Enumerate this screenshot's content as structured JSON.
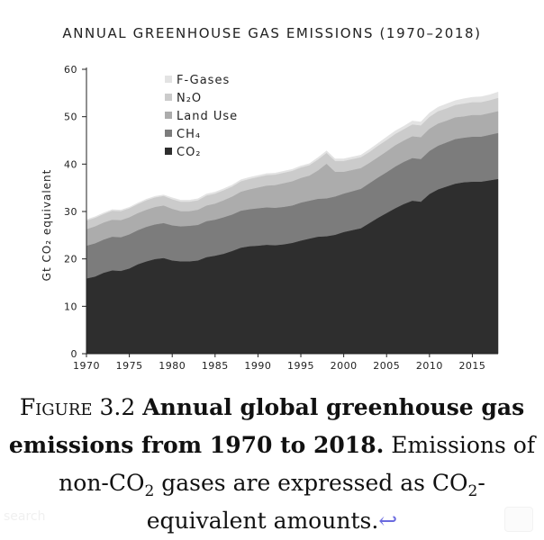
{
  "chart_data": {
    "type": "area",
    "title": "ANNUAL GREENHOUSE GAS EMISSIONS (1970–2018)",
    "ylabel": "Gt CO₂ equivalent",
    "xlabel": "",
    "xlim": [
      1970,
      2018
    ],
    "ylim": [
      0,
      60
    ],
    "yticks": [
      0,
      10,
      20,
      30,
      40,
      50,
      60
    ],
    "xticks": [
      1970,
      1975,
      1980,
      1985,
      1990,
      1995,
      2000,
      2005,
      2010,
      2015
    ],
    "grid": false,
    "legend_position": "top-left",
    "stacked": true,
    "x": [
      1970,
      1971,
      1972,
      1973,
      1974,
      1975,
      1976,
      1977,
      1978,
      1979,
      1980,
      1981,
      1982,
      1983,
      1984,
      1985,
      1986,
      1987,
      1988,
      1989,
      1990,
      1991,
      1992,
      1993,
      1994,
      1995,
      1996,
      1997,
      1998,
      1999,
      2000,
      2001,
      2002,
      2003,
      2004,
      2005,
      2006,
      2007,
      2008,
      2009,
      2010,
      2011,
      2012,
      2013,
      2014,
      2015,
      2016,
      2017,
      2018
    ],
    "series": [
      {
        "name": "CO₂",
        "color": "#2e2e2e",
        "values": [
          15.8,
          16.2,
          17.0,
          17.5,
          17.4,
          17.9,
          18.8,
          19.4,
          19.9,
          20.1,
          19.6,
          19.4,
          19.4,
          19.6,
          20.3,
          20.6,
          21.0,
          21.6,
          22.3,
          22.6,
          22.7,
          22.9,
          22.8,
          23.0,
          23.3,
          23.8,
          24.2,
          24.6,
          24.7,
          25.0,
          25.6,
          26.0,
          26.4,
          27.5,
          28.6,
          29.6,
          30.6,
          31.5,
          32.2,
          32.0,
          33.6,
          34.6,
          35.2,
          35.8,
          36.1,
          36.2,
          36.2,
          36.5,
          36.8
        ]
      },
      {
        "name": "CH₄",
        "color": "#7c7c7c",
        "values": [
          6.9,
          7.0,
          7.0,
          7.1,
          7.1,
          7.2,
          7.2,
          7.3,
          7.3,
          7.4,
          7.4,
          7.4,
          7.5,
          7.5,
          7.6,
          7.6,
          7.7,
          7.7,
          7.8,
          7.8,
          7.9,
          7.9,
          7.9,
          7.9,
          7.9,
          8.0,
          8.0,
          8.0,
          8.0,
          8.1,
          8.1,
          8.2,
          8.3,
          8.4,
          8.5,
          8.6,
          8.8,
          8.9,
          9.0,
          9.0,
          9.1,
          9.2,
          9.3,
          9.4,
          9.4,
          9.5,
          9.5,
          9.6,
          9.7
        ]
      },
      {
        "name": "Land Use",
        "color": "#acacac",
        "values": [
          3.5,
          3.6,
          3.6,
          3.6,
          3.6,
          3.6,
          3.6,
          3.6,
          3.7,
          3.7,
          3.5,
          3.2,
          3.1,
          3.2,
          3.3,
          3.4,
          3.6,
          3.8,
          4.0,
          4.2,
          4.4,
          4.6,
          4.8,
          5.0,
          5.1,
          5.2,
          5.3,
          6.0,
          7.3,
          5.2,
          4.6,
          4.5,
          4.4,
          4.3,
          4.3,
          4.4,
          4.5,
          4.5,
          4.6,
          4.6,
          4.7,
          4.7,
          4.6,
          4.6,
          4.5,
          4.6,
          4.6,
          4.6,
          4.6
        ]
      },
      {
        "name": "N₂O",
        "color": "#cbcbcb",
        "values": [
          1.8,
          1.8,
          1.8,
          1.9,
          1.9,
          1.9,
          1.9,
          2.0,
          2.0,
          2.0,
          2.0,
          2.0,
          2.0,
          2.0,
          2.1,
          2.1,
          2.1,
          2.1,
          2.2,
          2.2,
          2.2,
          2.2,
          2.2,
          2.2,
          2.2,
          2.2,
          2.2,
          2.3,
          2.3,
          2.3,
          2.3,
          2.3,
          2.3,
          2.3,
          2.4,
          2.4,
          2.4,
          2.4,
          2.5,
          2.5,
          2.5,
          2.6,
          2.6,
          2.6,
          2.7,
          2.7,
          2.7,
          2.7,
          2.8
        ]
      },
      {
        "name": "F-Gases",
        "color": "#e3e3e3",
        "values": [
          0.3,
          0.3,
          0.3,
          0.3,
          0.3,
          0.3,
          0.3,
          0.3,
          0.3,
          0.3,
          0.4,
          0.4,
          0.4,
          0.4,
          0.4,
          0.4,
          0.4,
          0.4,
          0.4,
          0.4,
          0.4,
          0.4,
          0.4,
          0.4,
          0.4,
          0.4,
          0.4,
          0.5,
          0.5,
          0.5,
          0.5,
          0.5,
          0.5,
          0.6,
          0.6,
          0.7,
          0.7,
          0.7,
          0.8,
          0.8,
          0.9,
          0.9,
          1.0,
          1.0,
          1.1,
          1.1,
          1.2,
          1.2,
          1.3
        ]
      }
    ]
  },
  "caption": {
    "figure_label": "Figure 3.2",
    "title": "Annual global greenhouse gas emissions from 1970 to 2018.",
    "text_before_sub": "Emissions of non-CO",
    "sub_2": "2",
    "text_middle": " gases are expressed as CO",
    "sub_2b": "2",
    "text_after": "-equivalent amounts.",
    "return_mark": "↩"
  },
  "watermark": {
    "text": "search"
  }
}
